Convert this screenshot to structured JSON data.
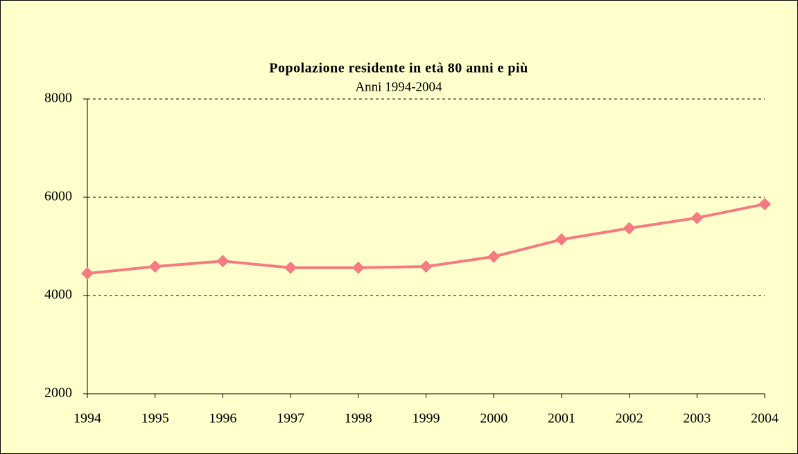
{
  "chart_data": {
    "type": "line",
    "title": "Popolazione residente in età 80 anni e più",
    "subtitle": "Anni 1994-2004",
    "categories": [
      "1994",
      "1995",
      "1996",
      "1997",
      "1998",
      "1999",
      "2000",
      "2001",
      "2002",
      "2003",
      "2004"
    ],
    "series": [
      {
        "name": "Popolazione residente in età 80 anni e più",
        "color": "#f47c80",
        "values": [
          4450,
          4590,
          4700,
          4565,
          4565,
          4590,
          4790,
          5140,
          5370,
          5580,
          5860
        ]
      }
    ],
    "ylim": [
      2000,
      8000
    ],
    "yticks": [
      2000,
      4000,
      6000,
      8000
    ],
    "grid": true
  }
}
